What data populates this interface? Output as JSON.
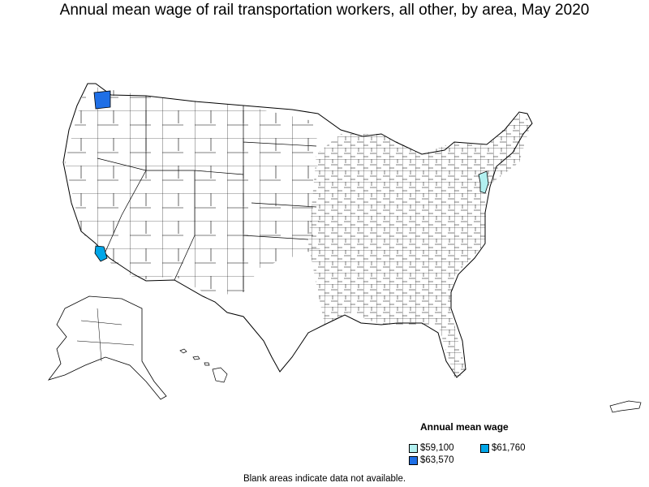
{
  "title": "Annual mean wage of rail transportation workers, all other, by area, May 2020",
  "legend": {
    "title": "Annual mean wage",
    "items": [
      {
        "label": "$59,100",
        "color": "#b2f0f0"
      },
      {
        "label": "$61,760",
        "color": "#00a6e8"
      },
      {
        "label": "$63,570",
        "color": "#1f6fe6"
      }
    ]
  },
  "note": "Blank areas indicate data not available.",
  "highlighted_areas": [
    {
      "region": "western Washington",
      "value": "$63,570"
    },
    {
      "region": "southern California",
      "value": "$61,760"
    },
    {
      "region": "New Jersey / New York",
      "value": "$59,100"
    }
  ]
}
